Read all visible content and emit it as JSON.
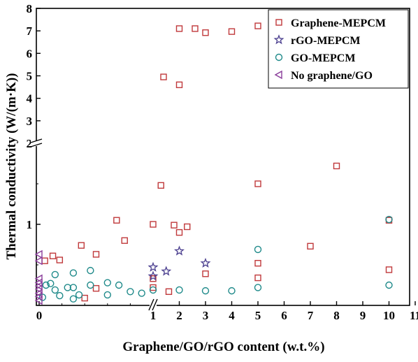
{
  "chart_data": {
    "type": "scatter",
    "xlabel": "Graphene/GO/rGO content (w.t.%)",
    "ylabel": "Thermal conductivity (W/(m·K))",
    "x_scale": "broken: linear 0–1 (expanded), linear 1–11",
    "y_scale": "broken: linear 0–2 (expanded), linear 2–8",
    "xlim": [
      0,
      11
    ],
    "ylim": [
      0,
      8
    ],
    "x_break": 1,
    "y_break": 2,
    "x_ticks": [
      "0",
      "1",
      "2",
      "3",
      "4",
      "5",
      "6",
      "7",
      "8",
      "9",
      "10",
      "11"
    ],
    "y_ticks": [
      "1",
      "2",
      "3",
      "4",
      "5",
      "6",
      "7",
      "8"
    ],
    "legend_position": "top-right",
    "series": [
      {
        "name": "Graphene-MEPCM",
        "marker": "square",
        "color": "#c0393b",
        "points": [
          [
            0.05,
            0.55
          ],
          [
            0.12,
            0.61
          ],
          [
            0.18,
            0.56
          ],
          [
            0.37,
            0.74
          ],
          [
            0.4,
            0.09
          ],
          [
            0.5,
            0.63
          ],
          [
            0.5,
            0.21
          ],
          [
            0.68,
            1.05
          ],
          [
            0.75,
            0.8
          ],
          [
            1.0,
            1.0
          ],
          [
            1.0,
            0.22
          ],
          [
            1.0,
            0.33
          ],
          [
            1.3,
            1.48
          ],
          [
            1.4,
            4.95
          ],
          [
            1.6,
            0.17
          ],
          [
            1.8,
            0.99
          ],
          [
            2.0,
            0.9
          ],
          [
            2.0,
            7.1
          ],
          [
            2.0,
            4.6
          ],
          [
            2.3,
            0.97
          ],
          [
            2.6,
            7.1
          ],
          [
            3.0,
            6.92
          ],
          [
            3.0,
            0.39
          ],
          [
            4.0,
            6.97
          ],
          [
            5.0,
            7.22
          ],
          [
            5.0,
            1.5
          ],
          [
            5.0,
            0.52
          ],
          [
            5.0,
            0.34
          ],
          [
            7.0,
            0.73
          ],
          [
            8.0,
            1.72
          ],
          [
            10.0,
            1.05
          ],
          [
            10.0,
            0.44
          ]
        ]
      },
      {
        "name": "rGO-MEPCM",
        "marker": "star",
        "color": "#4b3f8f",
        "points": [
          [
            1.0,
            0.47
          ],
          [
            1.0,
            0.36
          ],
          [
            1.5,
            0.42
          ],
          [
            2.0,
            0.67
          ],
          [
            3.0,
            0.52
          ]
        ]
      },
      {
        "name": "GO-MEPCM",
        "marker": "circle",
        "color": "#1f8a8a",
        "points": [
          [
            0.03,
            0.1
          ],
          [
            0.06,
            0.25
          ],
          [
            0.1,
            0.27
          ],
          [
            0.14,
            0.19
          ],
          [
            0.14,
            0.38
          ],
          [
            0.18,
            0.12
          ],
          [
            0.25,
            0.22
          ],
          [
            0.3,
            0.08
          ],
          [
            0.3,
            0.4
          ],
          [
            0.3,
            0.22
          ],
          [
            0.35,
            0.13
          ],
          [
            0.45,
            0.25
          ],
          [
            0.45,
            0.43
          ],
          [
            0.6,
            0.28
          ],
          [
            0.6,
            0.13
          ],
          [
            0.7,
            0.25
          ],
          [
            0.8,
            0.17
          ],
          [
            0.9,
            0.15
          ],
          [
            1.0,
            0.19
          ],
          [
            2.0,
            0.19
          ],
          [
            3.0,
            0.18
          ],
          [
            4.0,
            0.18
          ],
          [
            5.0,
            0.22
          ],
          [
            5.0,
            0.69
          ],
          [
            10.0,
            0.25
          ],
          [
            10.0,
            1.06
          ]
        ]
      },
      {
        "name": "No graphene/GO",
        "marker": "triangle-left",
        "color": "#8a3d9a",
        "points": [
          [
            0,
            0.63
          ],
          [
            0,
            0.55
          ],
          [
            0,
            0.33
          ],
          [
            0,
            0.28
          ],
          [
            0,
            0.24
          ],
          [
            0,
            0.2
          ],
          [
            0,
            0.15
          ],
          [
            0,
            0.11
          ],
          [
            0,
            0.06
          ]
        ]
      }
    ]
  }
}
